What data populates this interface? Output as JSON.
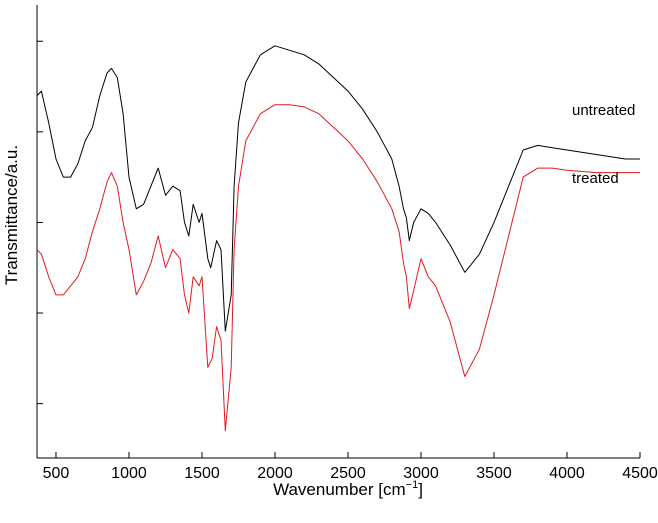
{
  "chart_data": {
    "type": "line",
    "xlabel": "Wavenumber [cm",
    "xlabel_sup": "−1",
    "xlabel_end": "]",
    "ylabel": "Transmittance/a.u.",
    "xlim": [
      370,
      4500
    ],
    "ylim": [
      0,
      100
    ],
    "x_ticks": [
      500,
      1000,
      1500,
      2000,
      2500,
      3000,
      3500,
      4000,
      4500
    ],
    "x_tick_labels": [
      "500",
      "1000",
      "1500",
      "2000",
      "2500",
      "3000",
      "3500",
      "4000",
      "4500"
    ],
    "y_ticks": [
      12,
      32,
      52,
      72,
      92
    ],
    "y_tick_labels": [
      "",
      "",
      "",
      "",
      ""
    ],
    "grid": false,
    "series": [
      {
        "name": "untreated",
        "color": "#000000",
        "points": [
          [
            370,
            80
          ],
          [
            400,
            81
          ],
          [
            450,
            74
          ],
          [
            500,
            66
          ],
          [
            550,
            62
          ],
          [
            600,
            62
          ],
          [
            650,
            65
          ],
          [
            700,
            70
          ],
          [
            750,
            73
          ],
          [
            800,
            80
          ],
          [
            850,
            85
          ],
          [
            880,
            86
          ],
          [
            920,
            84
          ],
          [
            960,
            76
          ],
          [
            1000,
            62
          ],
          [
            1050,
            55
          ],
          [
            1100,
            56
          ],
          [
            1150,
            60
          ],
          [
            1200,
            64
          ],
          [
            1250,
            58
          ],
          [
            1300,
            60
          ],
          [
            1350,
            59
          ],
          [
            1380,
            52
          ],
          [
            1410,
            49
          ],
          [
            1440,
            56
          ],
          [
            1480,
            52
          ],
          [
            1500,
            54
          ],
          [
            1540,
            44
          ],
          [
            1560,
            42
          ],
          [
            1600,
            48
          ],
          [
            1630,
            46
          ],
          [
            1660,
            28
          ],
          [
            1700,
            36
          ],
          [
            1720,
            60
          ],
          [
            1750,
            74
          ],
          [
            1800,
            83
          ],
          [
            1900,
            89
          ],
          [
            2000,
            91
          ],
          [
            2100,
            90
          ],
          [
            2200,
            89
          ],
          [
            2300,
            87
          ],
          [
            2400,
            84
          ],
          [
            2500,
            81
          ],
          [
            2600,
            77
          ],
          [
            2700,
            72
          ],
          [
            2800,
            66
          ],
          [
            2850,
            60
          ],
          [
            2880,
            55
          ],
          [
            2900,
            53
          ],
          [
            2920,
            48
          ],
          [
            2950,
            52
          ],
          [
            3000,
            55
          ],
          [
            3050,
            54
          ],
          [
            3100,
            52
          ],
          [
            3200,
            47
          ],
          [
            3300,
            41
          ],
          [
            3400,
            45
          ],
          [
            3500,
            52
          ],
          [
            3600,
            60
          ],
          [
            3700,
            68
          ],
          [
            3800,
            69
          ],
          [
            3900,
            68.5
          ],
          [
            4000,
            68
          ],
          [
            4200,
            67
          ],
          [
            4400,
            66
          ],
          [
            4500,
            66
          ]
        ]
      },
      {
        "name": "treated",
        "color": "#e31a1c",
        "points": [
          [
            370,
            46
          ],
          [
            400,
            45
          ],
          [
            450,
            40
          ],
          [
            500,
            36
          ],
          [
            550,
            36
          ],
          [
            600,
            38
          ],
          [
            650,
            40
          ],
          [
            700,
            44
          ],
          [
            750,
            50
          ],
          [
            800,
            55
          ],
          [
            850,
            61
          ],
          [
            880,
            63
          ],
          [
            920,
            60
          ],
          [
            960,
            52
          ],
          [
            1000,
            46
          ],
          [
            1050,
            36
          ],
          [
            1100,
            39
          ],
          [
            1150,
            43
          ],
          [
            1200,
            49
          ],
          [
            1250,
            42
          ],
          [
            1300,
            46
          ],
          [
            1350,
            44
          ],
          [
            1380,
            36
          ],
          [
            1410,
            32
          ],
          [
            1440,
            40
          ],
          [
            1480,
            38
          ],
          [
            1500,
            40
          ],
          [
            1540,
            20
          ],
          [
            1570,
            22
          ],
          [
            1600,
            29
          ],
          [
            1630,
            26
          ],
          [
            1660,
            6
          ],
          [
            1700,
            20
          ],
          [
            1720,
            46
          ],
          [
            1750,
            60
          ],
          [
            1800,
            70
          ],
          [
            1900,
            76
          ],
          [
            2000,
            78
          ],
          [
            2100,
            78
          ],
          [
            2200,
            77.5
          ],
          [
            2300,
            76
          ],
          [
            2400,
            73
          ],
          [
            2500,
            70
          ],
          [
            2600,
            66
          ],
          [
            2700,
            61
          ],
          [
            2800,
            55
          ],
          [
            2850,
            50
          ],
          [
            2880,
            43
          ],
          [
            2900,
            40
          ],
          [
            2920,
            33
          ],
          [
            2950,
            37
          ],
          [
            3000,
            44
          ],
          [
            3050,
            40
          ],
          [
            3100,
            38
          ],
          [
            3200,
            30
          ],
          [
            3300,
            18
          ],
          [
            3400,
            24
          ],
          [
            3500,
            36
          ],
          [
            3600,
            49
          ],
          [
            3700,
            62
          ],
          [
            3800,
            64
          ],
          [
            3900,
            64
          ],
          [
            4000,
            63.5
          ],
          [
            4200,
            63
          ],
          [
            4400,
            63
          ],
          [
            4500,
            63
          ]
        ]
      }
    ]
  }
}
